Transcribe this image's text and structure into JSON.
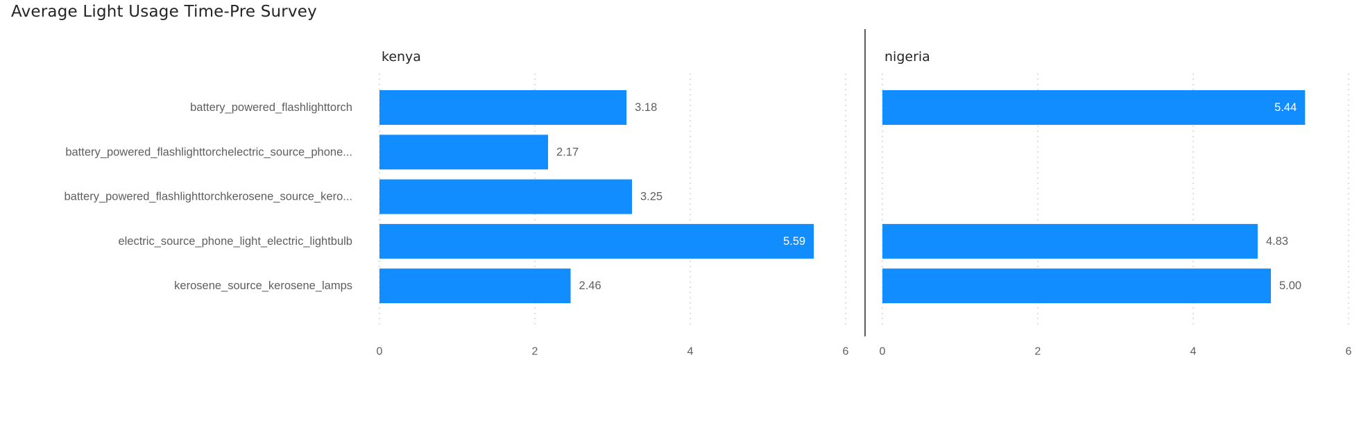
{
  "title": "Average Light Usage Time-Pre Survey",
  "chart_data": {
    "type": "bar",
    "orientation": "horizontal",
    "title": "Average Light Usage Time-Pre Survey",
    "categories": [
      "battery_powered_flashlighttorch",
      "battery_powered_flashlighttorchelectric_source_phone...",
      "battery_powered_flashlighttorchkerosene_source_kero...",
      "electric_source_phone_light_electric_lightbulb",
      "kerosene_source_kerosene_lamps"
    ],
    "xlim": [
      0,
      6
    ],
    "xticks": [
      "0",
      "2",
      "4",
      "6"
    ],
    "grid": true,
    "bar_color": "#118DFF",
    "panels": [
      {
        "name": "kenya",
        "values": [
          3.18,
          2.17,
          3.25,
          5.59,
          2.46
        ],
        "labels": [
          "3.18",
          "2.17",
          "3.25",
          "5.59",
          "2.46"
        ]
      },
      {
        "name": "nigeria",
        "values": [
          5.44,
          null,
          null,
          4.83,
          5.0
        ],
        "labels": [
          "5.44",
          "",
          "",
          "4.83",
          "5.00"
        ]
      }
    ]
  }
}
